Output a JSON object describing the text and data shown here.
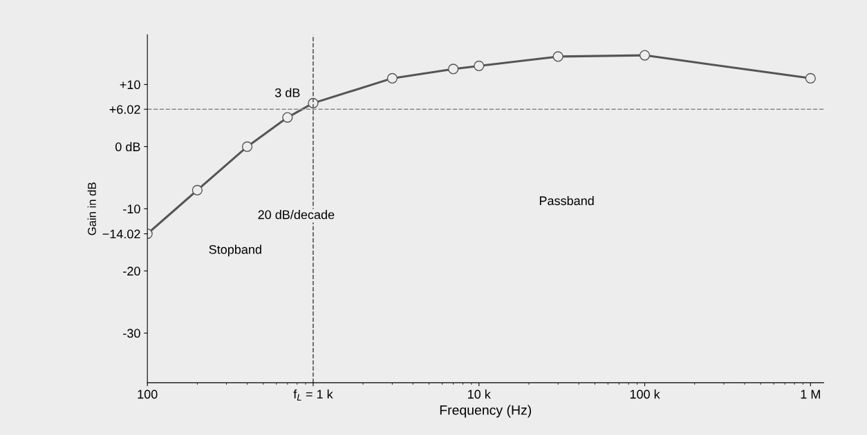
{
  "chart_data": {
    "type": "line",
    "xlabel": "Frequency (Hz)",
    "ylabel": "Gain in dB",
    "x": [
      100,
      200,
      400,
      700,
      1000,
      3000,
      7000,
      10000,
      30000,
      100000,
      1000000
    ],
    "series": [
      {
        "color": "#555555",
        "values": [
          -14.02,
          -7,
          0,
          4.7,
          7,
          11,
          12.5,
          13,
          14.5,
          14.7,
          11
        ]
      }
    ],
    "marker": "circle",
    "line_style": "solid",
    "log": "x",
    "grid": false,
    "xlim": [
      100,
      1200000
    ],
    "ylim": [
      -38,
      18
    ],
    "xticks": [
      {
        "value": 100,
        "label": "100"
      },
      {
        "value": 1000,
        "label": "f$_{L}$ = 1 k"
      },
      {
        "value": 10000,
        "label": "10 k"
      },
      {
        "value": 100000,
        "label": "100 k"
      },
      {
        "value": 1000000,
        "label": "1 M"
      }
    ],
    "yticks": [
      {
        "value": 10,
        "label": "+10"
      },
      {
        "value": 6.02,
        "label": "+6.02"
      },
      {
        "value": 0,
        "label": "0 dB"
      },
      -10,
      {
        "value": -14.02,
        "label": "−14.02"
      },
      -20,
      -30
    ],
    "ref_lines": [
      {
        "axis": "x",
        "value": 1000,
        "line_style": "dashed",
        "color": "#555555"
      },
      {
        "axis": "y",
        "value": 6.02,
        "line_style": "dashed",
        "color": "#888888"
      }
    ],
    "annotations": [
      {
        "text": "3 dB",
        "x": 700,
        "y": 8.5
      },
      "20 dB/decade",
      "Stopband",
      "Passband"
    ]
  }
}
